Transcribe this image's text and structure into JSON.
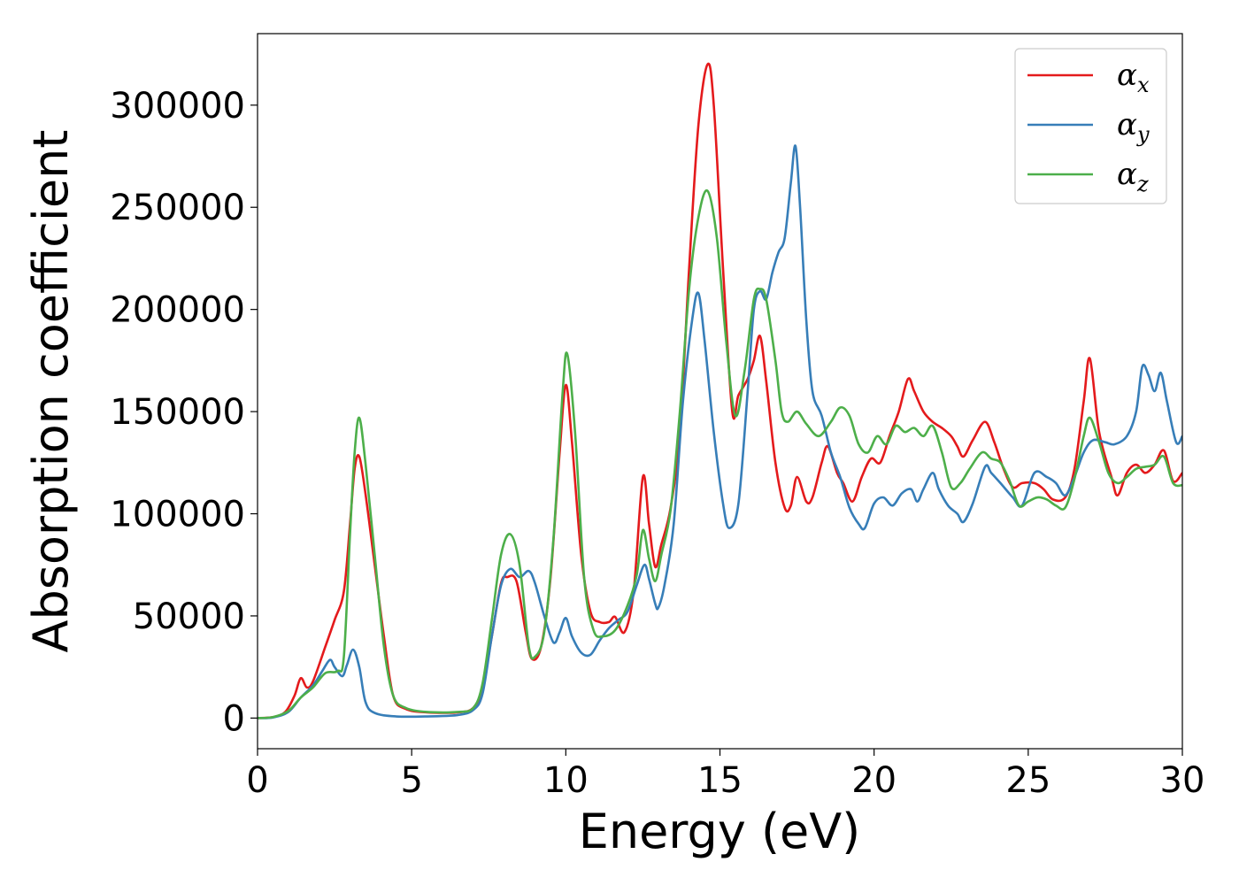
{
  "chart_data": {
    "type": "line",
    "title": "",
    "xlabel": "Energy (eV)",
    "ylabel": "Absorption coefficient",
    "xlim": [
      0,
      30
    ],
    "ylim": [
      -15000,
      335000
    ],
    "xticks": [
      0,
      5,
      10,
      15,
      20,
      25,
      30
    ],
    "yticks": [
      0,
      50000,
      100000,
      150000,
      200000,
      250000,
      300000
    ],
    "grid": false,
    "legend_position": "top-right",
    "series": [
      {
        "name": "α_x",
        "label_main": "α",
        "label_sub": "x",
        "color": "#e41a1c",
        "points": [
          [
            0,
            0
          ],
          [
            0.5,
            500
          ],
          [
            0.9,
            3000
          ],
          [
            1.2,
            11000
          ],
          [
            1.4,
            19500
          ],
          [
            1.6,
            15000
          ],
          [
            1.8,
            18000
          ],
          [
            2.2,
            35000
          ],
          [
            2.5,
            48000
          ],
          [
            2.8,
            62000
          ],
          [
            3.0,
            95000
          ],
          [
            3.15,
            122000
          ],
          [
            3.3,
            128000
          ],
          [
            3.5,
            110000
          ],
          [
            3.8,
            75000
          ],
          [
            4.1,
            40000
          ],
          [
            4.4,
            11000
          ],
          [
            4.8,
            4500
          ],
          [
            5.5,
            2800
          ],
          [
            6.5,
            2800
          ],
          [
            7.0,
            5000
          ],
          [
            7.3,
            15000
          ],
          [
            7.6,
            40000
          ],
          [
            7.9,
            66000
          ],
          [
            8.1,
            69000
          ],
          [
            8.4,
            67000
          ],
          [
            8.7,
            42000
          ],
          [
            8.9,
            29000
          ],
          [
            9.2,
            35000
          ],
          [
            9.5,
            68000
          ],
          [
            9.8,
            130000
          ],
          [
            10.0,
            163000
          ],
          [
            10.2,
            135000
          ],
          [
            10.5,
            80000
          ],
          [
            10.8,
            52000
          ],
          [
            11.1,
            47000
          ],
          [
            11.4,
            47000
          ],
          [
            11.6,
            49500
          ],
          [
            11.9,
            42000
          ],
          [
            12.2,
            62000
          ],
          [
            12.5,
            118000
          ],
          [
            12.7,
            95000
          ],
          [
            12.9,
            74000
          ],
          [
            13.1,
            85000
          ],
          [
            13.4,
            103000
          ],
          [
            13.7,
            140000
          ],
          [
            14.0,
            220000
          ],
          [
            14.3,
            290000
          ],
          [
            14.6,
            320000
          ],
          [
            14.8,
            300000
          ],
          [
            15.1,
            220000
          ],
          [
            15.4,
            150000
          ],
          [
            15.6,
            158000
          ],
          [
            15.9,
            166000
          ],
          [
            16.1,
            175000
          ],
          [
            16.3,
            187000
          ],
          [
            16.5,
            165000
          ],
          [
            16.8,
            125000
          ],
          [
            17.1,
            103000
          ],
          [
            17.3,
            104000
          ],
          [
            17.5,
            118000
          ],
          [
            17.8,
            106000
          ],
          [
            18.0,
            108000
          ],
          [
            18.3,
            125000
          ],
          [
            18.5,
            133000
          ],
          [
            18.8,
            120000
          ],
          [
            19.0,
            115000
          ],
          [
            19.3,
            106000
          ],
          [
            19.6,
            118000
          ],
          [
            19.9,
            127000
          ],
          [
            20.2,
            125000
          ],
          [
            20.5,
            138000
          ],
          [
            20.8,
            150000
          ],
          [
            21.1,
            166000
          ],
          [
            21.3,
            160000
          ],
          [
            21.6,
            150000
          ],
          [
            21.9,
            145000
          ],
          [
            22.2,
            142000
          ],
          [
            22.5,
            138000
          ],
          [
            22.7,
            133000
          ],
          [
            22.9,
            128000
          ],
          [
            23.2,
            136000
          ],
          [
            23.6,
            145000
          ],
          [
            23.9,
            135000
          ],
          [
            24.2,
            122000
          ],
          [
            24.5,
            113000
          ],
          [
            24.8,
            115000
          ],
          [
            25.2,
            115000
          ],
          [
            25.5,
            112000
          ],
          [
            25.8,
            107000
          ],
          [
            26.2,
            108000
          ],
          [
            26.5,
            122000
          ],
          [
            26.8,
            155000
          ],
          [
            27.0,
            176000
          ],
          [
            27.3,
            140000
          ],
          [
            27.7,
            118000
          ],
          [
            27.9,
            109000
          ],
          [
            28.2,
            120000
          ],
          [
            28.5,
            124000
          ],
          [
            28.8,
            120000
          ],
          [
            29.1,
            124000
          ],
          [
            29.4,
            131000
          ],
          [
            29.7,
            116000
          ],
          [
            30.0,
            120000
          ]
        ]
      },
      {
        "name": "α_y",
        "label_main": "α",
        "label_sub": "y",
        "color": "#377eb8",
        "points": [
          [
            0,
            0
          ],
          [
            0.5,
            300
          ],
          [
            1.0,
            3000
          ],
          [
            1.4,
            10000
          ],
          [
            1.8,
            16000
          ],
          [
            2.1,
            23000
          ],
          [
            2.35,
            28500
          ],
          [
            2.5,
            25000
          ],
          [
            2.75,
            20500
          ],
          [
            2.9,
            26000
          ],
          [
            3.1,
            33500
          ],
          [
            3.3,
            25000
          ],
          [
            3.5,
            8000
          ],
          [
            3.8,
            2500
          ],
          [
            4.5,
            800
          ],
          [
            5.5,
            800
          ],
          [
            6.5,
            1500
          ],
          [
            7.0,
            4000
          ],
          [
            7.3,
            12000
          ],
          [
            7.6,
            40000
          ],
          [
            7.9,
            65000
          ],
          [
            8.2,
            73000
          ],
          [
            8.5,
            69000
          ],
          [
            8.8,
            72000
          ],
          [
            9.0,
            66000
          ],
          [
            9.3,
            50000
          ],
          [
            9.6,
            37000
          ],
          [
            9.8,
            42000
          ],
          [
            10.0,
            49000
          ],
          [
            10.2,
            40000
          ],
          [
            10.5,
            32000
          ],
          [
            10.8,
            31000
          ],
          [
            11.1,
            38000
          ],
          [
            11.4,
            44000
          ],
          [
            11.7,
            48000
          ],
          [
            12.0,
            52000
          ],
          [
            12.3,
            65000
          ],
          [
            12.55,
            75000
          ],
          [
            12.7,
            68000
          ],
          [
            12.9,
            56000
          ],
          [
            13.0,
            54000
          ],
          [
            13.2,
            65000
          ],
          [
            13.5,
            95000
          ],
          [
            13.8,
            155000
          ],
          [
            14.1,
            195000
          ],
          [
            14.3,
            208000
          ],
          [
            14.5,
            185000
          ],
          [
            14.8,
            140000
          ],
          [
            15.1,
            105000
          ],
          [
            15.3,
            93000
          ],
          [
            15.6,
            105000
          ],
          [
            15.9,
            160000
          ],
          [
            16.1,
            200000
          ],
          [
            16.3,
            209000
          ],
          [
            16.5,
            205000
          ],
          [
            16.7,
            218000
          ],
          [
            16.9,
            228000
          ],
          [
            17.1,
            235000
          ],
          [
            17.3,
            262000
          ],
          [
            17.45,
            280000
          ],
          [
            17.6,
            250000
          ],
          [
            17.8,
            195000
          ],
          [
            18.0,
            160000
          ],
          [
            18.3,
            148000
          ],
          [
            18.6,
            130000
          ],
          [
            18.9,
            118000
          ],
          [
            19.2,
            103000
          ],
          [
            19.5,
            95000
          ],
          [
            19.7,
            93000
          ],
          [
            20.0,
            105000
          ],
          [
            20.3,
            108000
          ],
          [
            20.6,
            104000
          ],
          [
            20.9,
            110000
          ],
          [
            21.2,
            112000
          ],
          [
            21.4,
            106000
          ],
          [
            21.6,
            112000
          ],
          [
            21.9,
            120000
          ],
          [
            22.1,
            112000
          ],
          [
            22.4,
            104000
          ],
          [
            22.7,
            100000
          ],
          [
            22.9,
            96000
          ],
          [
            23.2,
            105000
          ],
          [
            23.6,
            123000
          ],
          [
            23.8,
            120000
          ],
          [
            24.1,
            115000
          ],
          [
            24.5,
            108000
          ],
          [
            24.8,
            104000
          ],
          [
            25.2,
            120000
          ],
          [
            25.6,
            118000
          ],
          [
            25.9,
            115000
          ],
          [
            26.2,
            109000
          ],
          [
            26.5,
            118000
          ],
          [
            26.8,
            130000
          ],
          [
            27.1,
            136000
          ],
          [
            27.5,
            135000
          ],
          [
            27.8,
            134000
          ],
          [
            28.2,
            138000
          ],
          [
            28.5,
            150000
          ],
          [
            28.7,
            172000
          ],
          [
            28.9,
            168000
          ],
          [
            29.1,
            160000
          ],
          [
            29.3,
            169000
          ],
          [
            29.5,
            155000
          ],
          [
            29.8,
            135000
          ],
          [
            30.0,
            138000
          ]
        ]
      },
      {
        "name": "α_z",
        "label_main": "α",
        "label_sub": "z",
        "color": "#4daf4a",
        "points": [
          [
            0,
            0
          ],
          [
            0.5,
            500
          ],
          [
            1.0,
            3500
          ],
          [
            1.4,
            10000
          ],
          [
            1.8,
            15000
          ],
          [
            2.2,
            22000
          ],
          [
            2.6,
            23000
          ],
          [
            2.8,
            30000
          ],
          [
            3.0,
            90000
          ],
          [
            3.15,
            130000
          ],
          [
            3.3,
            147000
          ],
          [
            3.5,
            125000
          ],
          [
            3.8,
            80000
          ],
          [
            4.1,
            35000
          ],
          [
            4.4,
            11000
          ],
          [
            4.8,
            5000
          ],
          [
            5.5,
            3000
          ],
          [
            6.5,
            3000
          ],
          [
            7.0,
            5000
          ],
          [
            7.3,
            17000
          ],
          [
            7.6,
            48000
          ],
          [
            7.9,
            80000
          ],
          [
            8.2,
            90000
          ],
          [
            8.5,
            75000
          ],
          [
            8.8,
            35000
          ],
          [
            9.0,
            30000
          ],
          [
            9.3,
            42000
          ],
          [
            9.6,
            88000
          ],
          [
            9.9,
            160000
          ],
          [
            10.05,
            178000
          ],
          [
            10.3,
            140000
          ],
          [
            10.6,
            68000
          ],
          [
            10.9,
            43000
          ],
          [
            11.2,
            40000
          ],
          [
            11.6,
            43000
          ],
          [
            12.0,
            55000
          ],
          [
            12.3,
            70000
          ],
          [
            12.5,
            92000
          ],
          [
            12.7,
            78000
          ],
          [
            12.9,
            67000
          ],
          [
            13.1,
            80000
          ],
          [
            13.4,
            102000
          ],
          [
            13.7,
            150000
          ],
          [
            14.0,
            210000
          ],
          [
            14.3,
            245000
          ],
          [
            14.6,
            258000
          ],
          [
            14.9,
            235000
          ],
          [
            15.2,
            185000
          ],
          [
            15.5,
            148000
          ],
          [
            15.8,
            170000
          ],
          [
            16.1,
            205000
          ],
          [
            16.3,
            210000
          ],
          [
            16.5,
            205000
          ],
          [
            16.8,
            175000
          ],
          [
            17.0,
            150000
          ],
          [
            17.2,
            145000
          ],
          [
            17.5,
            150000
          ],
          [
            17.8,
            144000
          ],
          [
            18.2,
            138000
          ],
          [
            18.6,
            145000
          ],
          [
            18.9,
            152000
          ],
          [
            19.2,
            148000
          ],
          [
            19.5,
            134000
          ],
          [
            19.8,
            130000
          ],
          [
            20.1,
            138000
          ],
          [
            20.4,
            134000
          ],
          [
            20.7,
            143000
          ],
          [
            21.0,
            140000
          ],
          [
            21.3,
            142000
          ],
          [
            21.6,
            138000
          ],
          [
            21.9,
            143000
          ],
          [
            22.2,
            130000
          ],
          [
            22.5,
            113000
          ],
          [
            22.8,
            115000
          ],
          [
            23.1,
            122000
          ],
          [
            23.5,
            130000
          ],
          [
            23.8,
            127000
          ],
          [
            24.1,
            125000
          ],
          [
            24.4,
            116000
          ],
          [
            24.7,
            104000
          ],
          [
            25.0,
            106000
          ],
          [
            25.3,
            108000
          ],
          [
            25.6,
            107000
          ],
          [
            25.9,
            104000
          ],
          [
            26.2,
            103000
          ],
          [
            26.5,
            117000
          ],
          [
            26.8,
            138000
          ],
          [
            27.0,
            147000
          ],
          [
            27.3,
            135000
          ],
          [
            27.6,
            120000
          ],
          [
            27.9,
            115000
          ],
          [
            28.2,
            118000
          ],
          [
            28.5,
            122000
          ],
          [
            28.8,
            123000
          ],
          [
            29.1,
            124000
          ],
          [
            29.4,
            128000
          ],
          [
            29.7,
            115000
          ],
          [
            30.0,
            114000
          ]
        ]
      }
    ]
  }
}
